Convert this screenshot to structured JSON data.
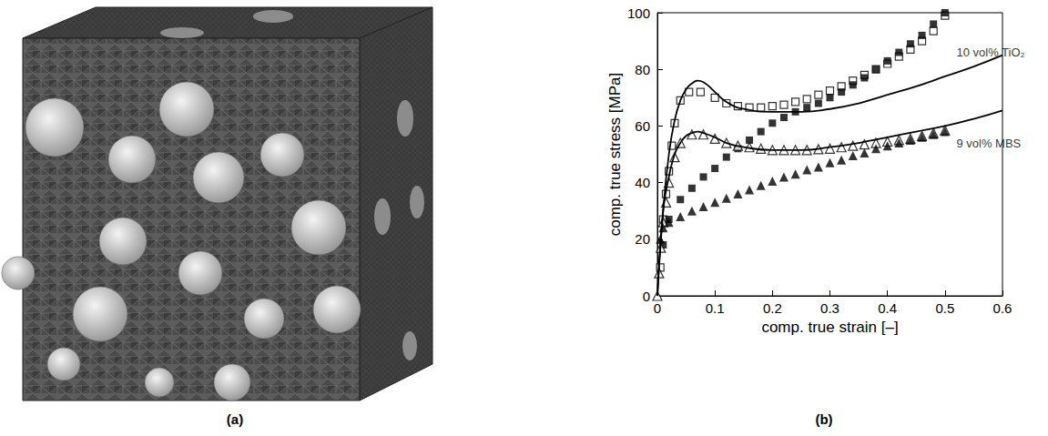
{
  "mesh_panel": {
    "caption": "(a)"
  },
  "chart_data": {
    "type": "line",
    "caption": "(b)",
    "x_label": "comp. true strain [–]",
    "y_label": "comp. true stress [MPa]",
    "xlim": [
      0,
      0.6
    ],
    "xticks": [
      0,
      0.1,
      0.2,
      0.3,
      0.4,
      0.5,
      0.6
    ],
    "ylim": [
      0,
      100
    ],
    "yticks": [
      0,
      20,
      40,
      60,
      80,
      100
    ],
    "grid": false,
    "series": [
      {
        "type": "scatter",
        "marker": "square-open",
        "color": "#000000",
        "x": [
          0.005,
          0.01,
          0.015,
          0.02,
          0.025,
          0.03,
          0.04,
          0.055,
          0.075,
          0.1,
          0.12,
          0.14,
          0.16,
          0.18,
          0.2,
          0.22,
          0.24,
          0.26,
          0.28,
          0.3,
          0.32,
          0.34,
          0.36,
          0.38,
          0.4,
          0.42,
          0.44,
          0.46,
          0.48,
          0.5
        ],
        "values": [
          10,
          27,
          36,
          44,
          53,
          61,
          69,
          72,
          72,
          70,
          68,
          67,
          66.5,
          66.5,
          67,
          67.5,
          68.5,
          69.5,
          71,
          72.5,
          74,
          76,
          78,
          80,
          82,
          84.5,
          87,
          90,
          93.5,
          99
        ]
      },
      {
        "type": "scatter",
        "marker": "square-filled",
        "color": "#000000",
        "x": [
          0.01,
          0.02,
          0.04,
          0.06,
          0.08,
          0.1,
          0.12,
          0.14,
          0.16,
          0.18,
          0.2,
          0.22,
          0.24,
          0.26,
          0.28,
          0.3,
          0.32,
          0.34,
          0.36,
          0.38,
          0.4,
          0.42,
          0.44,
          0.46,
          0.48,
          0.5
        ],
        "values": [
          18,
          27,
          34,
          38,
          42,
          45,
          49,
          52,
          55,
          58,
          61,
          63,
          65,
          66.5,
          68,
          70,
          72,
          74.5,
          77,
          80,
          83,
          86,
          89,
          92,
          96,
          100
        ]
      },
      {
        "type": "line",
        "marker": "none",
        "line_style": "solid",
        "color": "#000000",
        "x": [
          0,
          0.01,
          0.02,
          0.03,
          0.04,
          0.05,
          0.06,
          0.07,
          0.08,
          0.1,
          0.12,
          0.15,
          0.2,
          0.25,
          0.3,
          0.35,
          0.4,
          0.45,
          0.5,
          0.55,
          0.6
        ],
        "values": [
          0,
          30,
          50,
          62,
          69,
          73,
          75,
          76,
          75.5,
          72,
          68.5,
          66,
          65,
          65,
          66,
          68,
          71,
          74,
          77.5,
          81,
          85
        ]
      },
      {
        "type": "scatter",
        "marker": "triangle-open",
        "color": "#000000",
        "x": [
          0,
          0.003,
          0.006,
          0.01,
          0.015,
          0.02,
          0.03,
          0.04,
          0.06,
          0.08,
          0.1,
          0.12,
          0.14,
          0.16,
          0.18,
          0.2,
          0.22,
          0.24,
          0.26,
          0.28,
          0.3,
          0.32,
          0.34,
          0.36,
          0.38,
          0.4,
          0.42,
          0.44,
          0.46,
          0.48,
          0.5
        ],
        "values": [
          0,
          8,
          17,
          26,
          33,
          40,
          49,
          54,
          57,
          57,
          55.5,
          54,
          53,
          52.5,
          52,
          51.5,
          51.5,
          51.5,
          51.5,
          51.8,
          52,
          52.5,
          53,
          53.5,
          54,
          54.5,
          55,
          55.5,
          56.5,
          57.5,
          58.5
        ]
      },
      {
        "type": "scatter",
        "marker": "triangle-filled",
        "color": "#000000",
        "x": [
          0.005,
          0.01,
          0.02,
          0.04,
          0.06,
          0.08,
          0.1,
          0.12,
          0.14,
          0.16,
          0.18,
          0.2,
          0.22,
          0.24,
          0.26,
          0.28,
          0.3,
          0.32,
          0.34,
          0.36,
          0.38,
          0.4,
          0.42,
          0.44,
          0.46,
          0.48,
          0.5
        ],
        "values": [
          20,
          24,
          26,
          28,
          30,
          31.5,
          33,
          34.5,
          36,
          37.5,
          39,
          40.5,
          42,
          43,
          44.5,
          45.5,
          47,
          48,
          49.5,
          50.5,
          52,
          53,
          54,
          55,
          56,
          57,
          58
        ]
      },
      {
        "type": "line",
        "marker": "none",
        "line_style": "solid",
        "color": "#000000",
        "x": [
          0,
          0.01,
          0.02,
          0.03,
          0.04,
          0.05,
          0.06,
          0.07,
          0.08,
          0.1,
          0.12,
          0.15,
          0.2,
          0.25,
          0.3,
          0.35,
          0.4,
          0.45,
          0.5,
          0.55,
          0.6
        ],
        "values": [
          0,
          30,
          42,
          50,
          54,
          56.5,
          57.5,
          58,
          57.5,
          56,
          54,
          52.5,
          51.5,
          51.5,
          52.5,
          54,
          56,
          58,
          60,
          62.5,
          65.5
        ]
      }
    ],
    "annotations": [
      {
        "text": "10 vol% TiO₂",
        "x": 0.52,
        "y": 86
      },
      {
        "text": "9 vol% MBS",
        "x": 0.52,
        "y": 54
      }
    ]
  }
}
